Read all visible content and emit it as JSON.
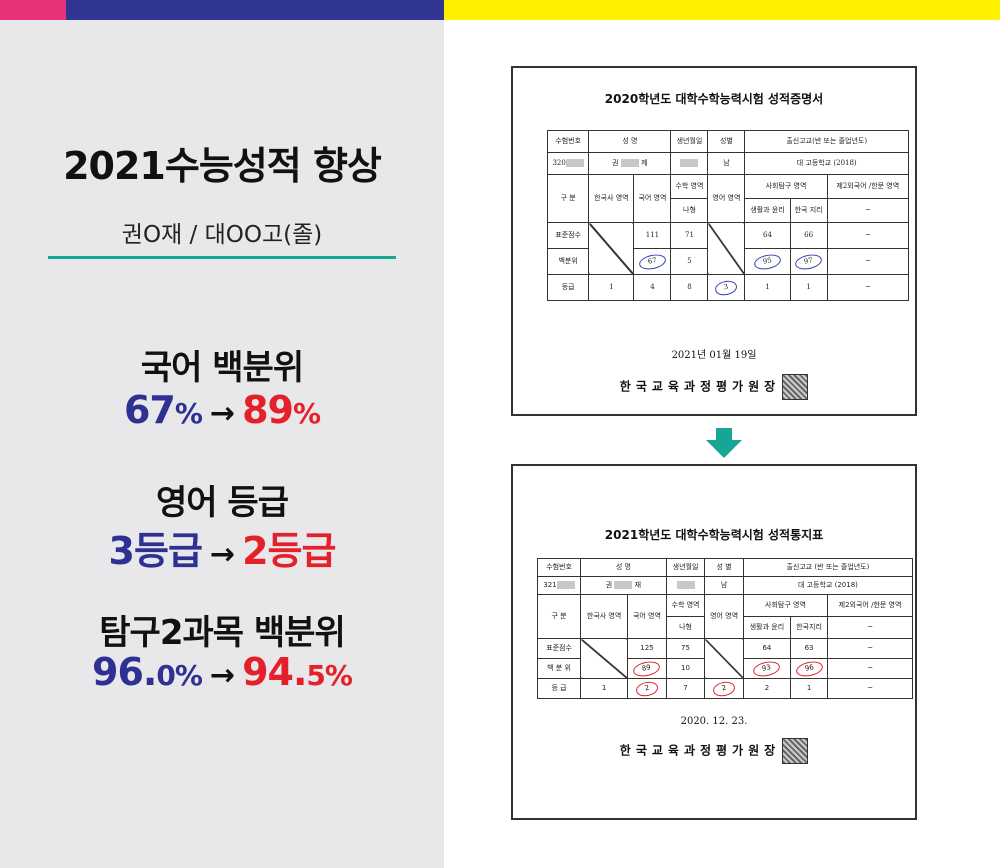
{
  "left": {
    "title": "2021수능성적 향상",
    "student": "권O재 / 대OO고(졸)",
    "stats": [
      {
        "label": "국어 백분위",
        "before": "67",
        "before_unit": "%",
        "after": "89",
        "after_unit": "%"
      },
      {
        "label": "영어 등급",
        "before": "3등급",
        "before_unit": "",
        "after": "2등급",
        "after_unit": ""
      },
      {
        "label": "탐구2과목 백분위",
        "before": "96.",
        "before_unit": "0%",
        "after": "94.",
        "after_unit": "5%"
      }
    ],
    "arrow": "→"
  },
  "doc1": {
    "title": "2020학년도 대학수학능력시험 성적증명서",
    "h_id": "수험번호",
    "h_name": "성 명",
    "h_birth": "생년월일",
    "h_sex": "성별",
    "h_school": "출신고교(반 또는 졸업년도)",
    "id": "320",
    "name_a": "권",
    "name_b": "제",
    "sex": "남",
    "school": "대   고등학교 (2018)",
    "c_gubun": "구 분",
    "c_history": "한국사 영역",
    "c_korean": "국어 영역",
    "c_math": "수학 영역",
    "c_math_type": "나형",
    "c_english": "영어 영역",
    "c_social": "사회탐구 영역",
    "c_social1": "생활과 윤리",
    "c_social2": "한국 지리",
    "c_lang2": "제2외국어 /한문 영역",
    "dash": "─",
    "r_std": "표준점수",
    "r_pct": "백분위",
    "r_grade": "등급",
    "std": {
      "korean": "111",
      "math": "71",
      "s1": "64",
      "s2": "66"
    },
    "pct": {
      "korean": "67",
      "math": "5",
      "s1": "95",
      "s2": "97"
    },
    "grade": {
      "history": "1",
      "korean": "4",
      "math": "8",
      "english": "3",
      "s1": "1",
      "s2": "1"
    },
    "date": "2021년 01월 19일",
    "org": "한국교육과정평가원",
    "org_suffix": "장"
  },
  "doc2": {
    "title": "2021학년도 대학수학능력시험 성적통지표",
    "h_id": "수험번호",
    "h_name": "성 명",
    "h_birth": "생년월일",
    "h_sex": "성 별",
    "h_school": "출신고교 (반 또는 졸업년도)",
    "id": "321",
    "name_a": "권",
    "name_b": "재",
    "sex": "남",
    "school": "대   고등학교 (2018)",
    "c_gubun": "구 분",
    "c_history": "한국사 영역",
    "c_korean": "국어 영역",
    "c_math": "수학 영역",
    "c_math_type": "나형",
    "c_english": "영어 영역",
    "c_social": "사회탐구 영역",
    "c_social1": "생활과 윤리",
    "c_social2": "한국지리",
    "c_lang2": "제2외국어 /한문 영역",
    "dash": "─",
    "r_std": "표준점수",
    "r_pct": "백 분 위",
    "r_grade": "등 급",
    "std": {
      "korean": "125",
      "math": "75",
      "s1": "64",
      "s2": "63"
    },
    "pct": {
      "korean": "89",
      "math": "10",
      "s1": "93",
      "s2": "96"
    },
    "grade": {
      "history": "1",
      "korean": "2",
      "math": "7",
      "english": "2",
      "s1": "2",
      "s2": "1"
    },
    "date": "2020. 12. 23.",
    "org": "한국교육과정평가원",
    "org_suffix": "장"
  },
  "colors": {
    "pink": "#e8327a",
    "navy": "#2f3590",
    "yellow": "#fff100",
    "teal": "#17a596",
    "blue": "#2e3192",
    "red": "#e4212b"
  }
}
